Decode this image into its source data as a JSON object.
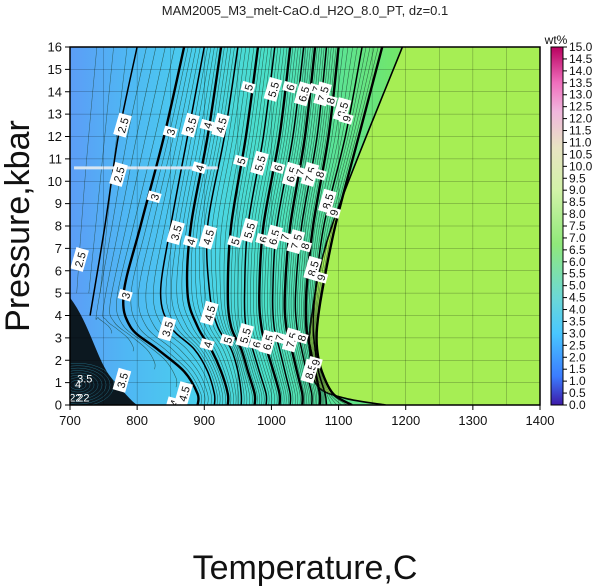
{
  "chart_data": {
    "type": "contour",
    "title": "MAM2005_M3_melt-CaO.d_H2O_8.0_PT, dz=0.1",
    "xlabel": "Temperature,C",
    "ylabel": "Pressure,kbar",
    "xlim": [
      700,
      1400
    ],
    "ylim": [
      0,
      16
    ],
    "x_ticks": [
      "700",
      "800",
      "900",
      "1000",
      "1100",
      "1200",
      "1300",
      "1400"
    ],
    "y_ticks": [
      "0",
      "1",
      "2",
      "3",
      "4",
      "5",
      "6",
      "7",
      "8",
      "9",
      "10",
      "11",
      "12",
      "13",
      "14",
      "15",
      "16"
    ],
    "grid": true,
    "colorbar": {
      "title": "wt%",
      "range": [
        0.0,
        15.0
      ],
      "ticks": [
        "0.0",
        "0.5",
        "1.0",
        "1.5",
        "2.0",
        "2.5",
        "3.0",
        "3.5",
        "4.0",
        "4.5",
        "5.0",
        "5.5",
        "6.0",
        "6.5",
        "7.0",
        "7.5",
        "8.0",
        "8.5",
        "9.0",
        "9.5",
        "10.0",
        "10.5",
        "11.0",
        "11.5",
        "12.0",
        "12.5",
        "13.0",
        "13.5",
        "14.0",
        "14.5",
        "15.0"
      ]
    },
    "saturation_boundary": {
      "value": 10.0,
      "color": "#a6ee54",
      "points": [
        [
          1195,
          16
        ],
        [
          1090,
          8
        ],
        [
          1060,
          4
        ],
        [
          1058,
          2
        ],
        [
          1070,
          0.8
        ],
        [
          1110,
          0.3
        ],
        [
          1170,
          0
        ]
      ]
    },
    "contours": [
      {
        "value": 2.5,
        "label": "2.5",
        "points": [
          [
            800,
            16
          ],
          [
            772,
            12
          ],
          [
            752,
            8
          ],
          [
            730,
            4
          ]
        ],
        "labels_at": [
          [
            779,
            12.5
          ],
          [
            773,
            10.3
          ],
          [
            715,
            6.5
          ]
        ]
      },
      {
        "value": 3,
        "label": "3",
        "points": [
          [
            870,
            16
          ],
          [
            840,
            12
          ],
          [
            805,
            8
          ],
          [
            780,
            5
          ],
          [
            790,
            3.5
          ],
          [
            830,
            2.5
          ],
          [
            870,
            1.5
          ],
          [
            890,
            0.5
          ],
          [
            890,
            0
          ]
        ],
        "labels_at": [
          [
            850,
            12.2
          ],
          [
            826,
            9.3
          ],
          [
            783,
            4.9
          ]
        ]
      },
      {
        "value": 3.5,
        "label": "3.5",
        "points": [
          [
            900,
            16
          ],
          [
            875,
            12
          ],
          [
            850,
            8
          ],
          [
            835,
            5
          ],
          [
            850,
            3.5
          ],
          [
            885,
            2.5
          ],
          [
            905,
            1.5
          ],
          [
            915,
            0.5
          ],
          [
            915,
            0
          ]
        ],
        "labels_at": [
          [
            880,
            12.5
          ],
          [
            858,
            7.7
          ],
          [
            845,
            3.4
          ],
          [
            778,
            1.1
          ]
        ]
      },
      {
        "value": 4,
        "label": "4",
        "points": [
          [
            925,
            16
          ],
          [
            905,
            12
          ],
          [
            880,
            8
          ],
          [
            875,
            5
          ],
          [
            890,
            3.5
          ],
          [
            910,
            2.5
          ],
          [
            925,
            1.5
          ],
          [
            935,
            0.5
          ],
          [
            935,
            0
          ]
        ],
        "labels_at": [
          [
            905,
            12.5
          ],
          [
            893,
            10.6
          ],
          [
            880,
            7.3
          ],
          [
            905,
            2.7
          ],
          [
            855,
            0.1
          ]
        ]
      },
      {
        "value": 4.5,
        "label": "4.5",
        "points": [
          [
            950,
            16
          ],
          [
            930,
            12
          ],
          [
            905,
            8
          ],
          [
            908,
            5
          ],
          [
            920,
            3.5
          ],
          [
            940,
            2.5
          ],
          [
            950,
            1.5
          ],
          [
            955,
            0.5
          ],
          [
            955,
            0
          ]
        ],
        "labels_at": [
          [
            925,
            12.5
          ],
          [
            906,
            7.5
          ],
          [
            908,
            4.1
          ],
          [
            870,
            0.5
          ]
        ]
      },
      {
        "value": 5,
        "label": "5",
        "points": [
          [
            980,
            16
          ],
          [
            962,
            12
          ],
          [
            940,
            8
          ],
          [
            935,
            5
          ],
          [
            940,
            3.5
          ],
          [
            955,
            2.5
          ],
          [
            965,
            1.5
          ],
          [
            975,
            0.5
          ],
          [
            975,
            0
          ]
        ],
        "labels_at": [
          [
            966,
            14.2
          ],
          [
            955,
            10.9
          ],
          [
            946,
            7.3
          ],
          [
            935,
            2.9
          ]
        ]
      },
      {
        "value": 5.5,
        "label": "5.5",
        "points": [
          [
            1005,
            16
          ],
          [
            988,
            12
          ],
          [
            965,
            8
          ],
          [
            960,
            5
          ],
          [
            962,
            3.5
          ],
          [
            972,
            2.5
          ],
          [
            982,
            1.5
          ],
          [
            992,
            0.5
          ],
          [
            992,
            0
          ]
        ],
        "labels_at": [
          [
            1003,
            14.1
          ],
          [
            983,
            10.8
          ],
          [
            967,
            7.8
          ],
          [
            961,
            3.1
          ]
        ]
      },
      {
        "value": 6,
        "label": "6",
        "points": [
          [
            1028,
            16
          ],
          [
            1012,
            12
          ],
          [
            988,
            8
          ],
          [
            982,
            5
          ],
          [
            985,
            3.5
          ],
          [
            993,
            2.5
          ],
          [
            1003,
            1.5
          ],
          [
            1012,
            0.5
          ],
          [
            1012,
            0
          ]
        ],
        "labels_at": [
          [
            1028,
            14.2
          ],
          [
            1010,
            10.6
          ],
          [
            988,
            7.4
          ],
          [
            978,
            2.7
          ]
        ]
      },
      {
        "value": 6.5,
        "label": "6.5",
        "points": [
          [
            1048,
            16
          ],
          [
            1032,
            12
          ],
          [
            1008,
            8
          ],
          [
            1002,
            5
          ],
          [
            1004,
            3.5
          ],
          [
            1012,
            2.5
          ],
          [
            1020,
            1.5
          ],
          [
            1028,
            0.5
          ],
          [
            1028,
            0
          ]
        ],
        "labels_at": [
          [
            1048,
            13.9
          ],
          [
            1030,
            10.3
          ],
          [
            1004,
            7.5
          ],
          [
            995,
            2.8
          ]
        ]
      },
      {
        "value": 7,
        "label": "7",
        "points": [
          [
            1065,
            16
          ],
          [
            1050,
            12
          ],
          [
            1028,
            8
          ],
          [
            1020,
            5
          ],
          [
            1022,
            3.5
          ],
          [
            1030,
            2.5
          ],
          [
            1038,
            1.5
          ],
          [
            1046,
            0.5
          ],
          [
            1046,
            0
          ]
        ],
        "labels_at": [
          [
            1067,
            14.1
          ],
          [
            1043,
            10.4
          ],
          [
            1020,
            7.5
          ],
          [
            1012,
            3.0
          ]
        ]
      },
      {
        "value": 7.5,
        "label": "7.5",
        "points": [
          [
            1082,
            16
          ],
          [
            1068,
            12
          ],
          [
            1045,
            8
          ],
          [
            1036,
            5
          ],
          [
            1038,
            3.5
          ],
          [
            1045,
            2.5
          ],
          [
            1052,
            1.5
          ],
          [
            1060,
            0.5
          ],
          [
            1060,
            0
          ]
        ],
        "labels_at": [
          [
            1077,
            13.9
          ],
          [
            1058,
            10.3
          ],
          [
            1037,
            7.3
          ],
          [
            1030,
            2.9
          ]
        ]
      },
      {
        "value": 8,
        "label": "8",
        "points": [
          [
            1100,
            16
          ],
          [
            1085,
            12
          ],
          [
            1062,
            8
          ],
          [
            1052,
            5
          ],
          [
            1052,
            3.5
          ],
          [
            1058,
            2.5
          ],
          [
            1065,
            1.5
          ],
          [
            1072,
            0.5
          ],
          [
            1072,
            0
          ]
        ],
        "labels_at": [
          [
            1088,
            13.6
          ],
          [
            1072,
            10.3
          ],
          [
            1050,
            7.1
          ],
          [
            1045,
            3.0
          ]
        ]
      },
      {
        "value": 8.5,
        "label": "8.5",
        "points": [
          [
            1135,
            16
          ],
          [
            1110,
            12
          ],
          [
            1078,
            8
          ],
          [
            1065,
            5
          ],
          [
            1062,
            3.5
          ],
          [
            1065,
            2.5
          ],
          [
            1070,
            1.5
          ],
          [
            1080,
            0.5
          ],
          [
            1082,
            0
          ]
        ],
        "labels_at": [
          [
            1106,
            13.2
          ],
          [
            1084,
            9.1
          ],
          [
            1062,
            6.1
          ],
          [
            1058,
            1.5
          ]
        ]
      },
      {
        "value": 9,
        "label": "9",
        "points": [
          [
            1165,
            16
          ],
          [
            1130,
            12
          ],
          [
            1095,
            8
          ],
          [
            1075,
            5
          ],
          [
            1068,
            3.5
          ],
          [
            1068,
            2.5
          ],
          [
            1075,
            1.5
          ],
          [
            1092,
            0.5
          ],
          [
            1120,
            0
          ]
        ],
        "labels_at": [
          [
            1112,
            12.8
          ],
          [
            1093,
            8.6
          ],
          [
            1074,
            5.7
          ],
          [
            1066,
            1.9
          ]
        ]
      }
    ],
    "lowP_cluster_labels": [
      "22",
      "22",
      "4",
      "3.5"
    ],
    "annotation_line": {
      "y": 10.6,
      "x": [
        706,
        920
      ],
      "color": "#d8e6f2"
    }
  }
}
